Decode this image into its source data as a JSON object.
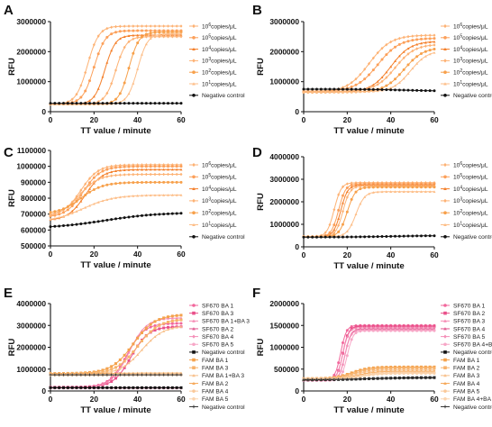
{
  "chart_data": [
    {
      "panel": "A",
      "type": "line",
      "xlabel": "TT value / minute",
      "ylabel": "RFU",
      "xlim": [
        0,
        60
      ],
      "ylim": [
        0,
        3000000
      ],
      "yticks": [
        "0",
        "1000000",
        "2000000",
        "3000000"
      ],
      "xticks": [
        "0",
        "20",
        "40",
        "60"
      ],
      "series": [
        {
          "name": "10^6copies/μL",
          "color": "#FDB274",
          "marker": "diamond",
          "base": 250000,
          "top": 2850000,
          "mid": 17,
          "slope": 2.6,
          "values_note": ""
        },
        {
          "name": "10^5copies/μL",
          "color": "#FCA05A",
          "marker": "circle",
          "base": 260000,
          "top": 2700000,
          "mid": 20,
          "slope": 2.6
        },
        {
          "name": "10^4copies/μL",
          "color": "#F47F2A",
          "marker": "triangle",
          "base": 250000,
          "top": 2550000,
          "mid": 25,
          "slope": 2.4
        },
        {
          "name": "10^3copies/μL",
          "color": "#FDB274",
          "marker": "diamond",
          "base": 260000,
          "top": 2500000,
          "mid": 30,
          "slope": 2.4
        },
        {
          "name": "10^2copies/μL",
          "color": "#F7A04A",
          "marker": "circle",
          "base": 250000,
          "top": 2650000,
          "mid": 36,
          "slope": 2.3
        },
        {
          "name": "10^1copies/μL",
          "color": "#FDBE88",
          "marker": "triangle",
          "base": 250000,
          "top": 2600000,
          "mid": 40,
          "slope": 2.3
        },
        {
          "name": "Negative control",
          "color": "#111111",
          "marker": "circle",
          "base": 280000,
          "top": 280000,
          "mid": 30,
          "slope": 3
        }
      ]
    },
    {
      "panel": "B",
      "type": "line",
      "xlabel": "TT value / minute",
      "ylabel": "RFU",
      "xlim": [
        0,
        60
      ],
      "ylim": [
        0,
        3000000
      ],
      "yticks": [
        "0",
        "1000000",
        "2000000",
        "3000000"
      ],
      "xticks": [
        "0",
        "20",
        "40",
        "60"
      ],
      "series": [
        {
          "name": "10^6copies/μL",
          "color": "#FDB274",
          "marker": "diamond",
          "base": 650000,
          "top": 2550000,
          "mid": 30,
          "slope": 5
        },
        {
          "name": "10^5copies/μL",
          "color": "#FCA05A",
          "marker": "circle",
          "base": 680000,
          "top": 2450000,
          "mid": 34,
          "slope": 5
        },
        {
          "name": "10^4copies/μL",
          "color": "#F47F2A",
          "marker": "triangle",
          "base": 650000,
          "top": 2350000,
          "mid": 40,
          "slope": 4.5
        },
        {
          "name": "10^3copies/μL",
          "color": "#FDB274",
          "marker": "diamond",
          "base": 680000,
          "top": 2250000,
          "mid": 42,
          "slope": 4.5
        },
        {
          "name": "10^2copies/μL",
          "color": "#F7A04A",
          "marker": "circle",
          "base": 650000,
          "top": 2150000,
          "mid": 46,
          "slope": 4.5
        },
        {
          "name": "10^1copies/μL",
          "color": "#FDBE88",
          "marker": "triangle",
          "base": 660000,
          "top": 2050000,
          "mid": 49,
          "slope": 4
        },
        {
          "name": "Negative control",
          "color": "#111111",
          "marker": "circle",
          "base": 750000,
          "top": 690000,
          "mid": 45,
          "slope": 8
        }
      ]
    },
    {
      "panel": "C",
      "type": "line",
      "xlabel": "TT value / minute",
      "ylabel": "RFU",
      "xlim": [
        0,
        60
      ],
      "ylim": [
        500000,
        1100000
      ],
      "yticks": [
        "500000",
        "600000",
        "700000",
        "800000",
        "900000",
        "1000000",
        "1100000"
      ],
      "xticks": [
        "0",
        "20",
        "40",
        "60"
      ],
      "series": [
        {
          "name": "10^6copies/μL",
          "color": "#FDB274",
          "marker": "diamond",
          "base": 690000,
          "top": 1010000,
          "mid": 14,
          "slope": 4
        },
        {
          "name": "10^5copies/μL",
          "color": "#FCA05A",
          "marker": "circle",
          "base": 680000,
          "top": 1000000,
          "mid": 15,
          "slope": 4
        },
        {
          "name": "10^4copies/μL",
          "color": "#F47F2A",
          "marker": "triangle",
          "base": 660000,
          "top": 980000,
          "mid": 16,
          "slope": 4
        },
        {
          "name": "10^3copies/μL",
          "color": "#FDB274",
          "marker": "diamond",
          "base": 680000,
          "top": 950000,
          "mid": 13,
          "slope": 4.5
        },
        {
          "name": "10^2copies/μL",
          "color": "#F7A04A",
          "marker": "circle",
          "base": 700000,
          "top": 900000,
          "mid": 14,
          "slope": 5
        },
        {
          "name": "10^1copies/μL",
          "color": "#FDBE88",
          "marker": "triangle",
          "base": 650000,
          "top": 820000,
          "mid": 15,
          "slope": 7
        },
        {
          "name": "Negative control",
          "color": "#111111",
          "marker": "circle",
          "base": 610000,
          "top": 710000,
          "mid": 25,
          "slope": 12
        }
      ]
    },
    {
      "panel": "D",
      "type": "line",
      "xlabel": "TT value / minute",
      "ylabel": "RFU",
      "xlim": [
        0,
        60
      ],
      "ylim": [
        0,
        4000000
      ],
      "yticks": [
        "0",
        "1000000",
        "2000000",
        "3000000",
        "4000000"
      ],
      "xticks": [
        "0",
        "20",
        "40",
        "60"
      ],
      "series": [
        {
          "name": "10^6copies/μL",
          "color": "#FDB274",
          "marker": "diamond",
          "base": 450000,
          "top": 2850000,
          "mid": 14,
          "slope": 1.6
        },
        {
          "name": "10^5copies/μL",
          "color": "#FCA05A",
          "marker": "circle",
          "base": 450000,
          "top": 2800000,
          "mid": 16,
          "slope": 1.6
        },
        {
          "name": "10^4copies/μL",
          "color": "#F47F2A",
          "marker": "triangle",
          "base": 450000,
          "top": 2750000,
          "mid": 17,
          "slope": 1.6
        },
        {
          "name": "10^3copies/μL",
          "color": "#FDB274",
          "marker": "diamond",
          "base": 450000,
          "top": 2700000,
          "mid": 18,
          "slope": 1.6
        },
        {
          "name": "10^2copies/μL",
          "color": "#F7A04A",
          "marker": "circle",
          "base": 450000,
          "top": 2650000,
          "mid": 20,
          "slope": 1.8
        },
        {
          "name": "10^1copies/μL",
          "color": "#FDBE88",
          "marker": "triangle",
          "base": 450000,
          "top": 2450000,
          "mid": 24,
          "slope": 2
        },
        {
          "name": "Negative control",
          "color": "#111111",
          "marker": "circle",
          "base": 430000,
          "top": 500000,
          "mid": 40,
          "slope": 10
        }
      ]
    },
    {
      "panel": "E",
      "type": "line",
      "xlabel": "TT value / minute",
      "ylabel": "RFU",
      "xlim": [
        0,
        60
      ],
      "ylim": [
        0,
        4000000
      ],
      "yticks": [
        "0",
        "1000000",
        "2000000",
        "3000000",
        "4000000"
      ],
      "xticks": [
        "0",
        "20",
        "40",
        "60"
      ],
      "series": [
        {
          "name": "SF670 BA 1",
          "color": "#F2679C",
          "marker": "circle",
          "base": 160000,
          "top": 3100000,
          "mid": 35,
          "slope": 4
        },
        {
          "name": "SF670 BA 3",
          "color": "#E9508A",
          "marker": "square",
          "base": 170000,
          "top": 2950000,
          "mid": 37,
          "slope": 4
        },
        {
          "name": "SF670 BA 1+BA 3",
          "color": "#F58AB3",
          "marker": "triangle",
          "base": 160000,
          "top": 3350000,
          "mid": 36,
          "slope": 4
        },
        {
          "name": "SF670 BA 2",
          "color": "#E05A91",
          "marker": "triangle",
          "base": 150000,
          "top": 150000,
          "mid": 30,
          "slope": 4
        },
        {
          "name": "SF670 BA 4",
          "color": "#F48FB8",
          "marker": "diamond",
          "base": 140000,
          "top": 140000,
          "mid": 30,
          "slope": 4
        },
        {
          "name": "SF670 BA 5",
          "color": "#F7A6C6",
          "marker": "circle",
          "base": 130000,
          "top": 130000,
          "mid": 30,
          "slope": 4
        },
        {
          "name": "Negative control",
          "color": "#111111",
          "marker": "square",
          "base": 150000,
          "top": 150000,
          "mid": 30,
          "slope": 4
        },
        {
          "name": "FAM BA 1",
          "color": "#F4A24C",
          "marker": "square",
          "base": 800000,
          "top": 3500000,
          "mid": 38,
          "slope": 5
        },
        {
          "name": "FAM BA 3",
          "color": "#F7B26B",
          "marker": "square",
          "base": 780000,
          "top": 3300000,
          "mid": 40,
          "slope": 5
        },
        {
          "name": "FAM BA 1+BA 3",
          "color": "#F8C08A",
          "marker": "triangle",
          "base": 760000,
          "top": 3000000,
          "mid": 42,
          "slope": 5
        },
        {
          "name": "FAM BA 2",
          "color": "#F6AB5E",
          "marker": "triangle",
          "base": 800000,
          "top": 820000,
          "mid": 30,
          "slope": 4
        },
        {
          "name": "FAM BA 4",
          "color": "#FAC99A",
          "marker": "circle",
          "base": 750000,
          "top": 760000,
          "mid": 30,
          "slope": 4
        },
        {
          "name": "FAM BA 5",
          "color": "#FBD4AE",
          "marker": "circle",
          "base": 720000,
          "top": 730000,
          "mid": 30,
          "slope": 4
        },
        {
          "name": "Negative control",
          "color": "#333333",
          "marker": "plus",
          "base": 740000,
          "top": 740000,
          "mid": 30,
          "slope": 4
        }
      ]
    },
    {
      "panel": "F",
      "type": "line",
      "xlabel": "TT value / minute",
      "ylabel": "RFU",
      "xlim": [
        0,
        60
      ],
      "ylim": [
        0,
        2000000
      ],
      "yticks": [
        "0",
        "500000",
        "1000000",
        "1500000",
        "2000000"
      ],
      "xticks": [
        "0",
        "20",
        "40",
        "60"
      ],
      "series": [
        {
          "name": "SF670 BA 1",
          "color": "#F2679C",
          "marker": "circle",
          "base": 250000,
          "top": 1500000,
          "mid": 17,
          "slope": 1.3
        },
        {
          "name": "SF670 BA 2",
          "color": "#E9508A",
          "marker": "square",
          "base": 250000,
          "top": 1480000,
          "mid": 18,
          "slope": 1.3
        },
        {
          "name": "SF670 BA 3",
          "color": "#F58AB3",
          "marker": "triangle",
          "base": 250000,
          "top": 1450000,
          "mid": 18,
          "slope": 1.3
        },
        {
          "name": "SF670 BA 4",
          "color": "#E05A91",
          "marker": "triangle",
          "base": 240000,
          "top": 1420000,
          "mid": 19,
          "slope": 1.3
        },
        {
          "name": "SF670 BA 5",
          "color": "#F48FB8",
          "marker": "diamond",
          "base": 240000,
          "top": 1400000,
          "mid": 19,
          "slope": 1.3
        },
        {
          "name": "SF670 BA 4+BA 5",
          "color": "#F7A6C6",
          "marker": "circle",
          "base": 240000,
          "top": 1380000,
          "mid": 20,
          "slope": 1.3
        },
        {
          "name": "Negative control",
          "color": "#111111",
          "marker": "square",
          "base": 250000,
          "top": 310000,
          "mid": 30,
          "slope": 10
        },
        {
          "name": "FAM BA 1",
          "color": "#F4A24C",
          "marker": "square",
          "base": 280000,
          "top": 550000,
          "mid": 22,
          "slope": 4
        },
        {
          "name": "FAM BA 2",
          "color": "#F7B26B",
          "marker": "square",
          "base": 280000,
          "top": 520000,
          "mid": 23,
          "slope": 4
        },
        {
          "name": "FAM BA 3",
          "color": "#F8C08A",
          "marker": "triangle",
          "base": 280000,
          "top": 480000,
          "mid": 24,
          "slope": 4
        },
        {
          "name": "FAM BA 4",
          "color": "#F6AB5E",
          "marker": "triangle",
          "base": 270000,
          "top": 450000,
          "mid": 25,
          "slope": 4
        },
        {
          "name": "FAM BA 5",
          "color": "#FAC99A",
          "marker": "circle",
          "base": 270000,
          "top": 420000,
          "mid": 26,
          "slope": 4
        },
        {
          "name": "FAM BA 4+BA 5",
          "color": "#FBD4AE",
          "marker": "circle",
          "base": 270000,
          "top": 400000,
          "mid": 27,
          "slope": 4
        },
        {
          "name": "Negative control",
          "color": "#333333",
          "marker": "plus",
          "base": 260000,
          "top": 300000,
          "mid": 30,
          "slope": 10
        }
      ]
    }
  ]
}
